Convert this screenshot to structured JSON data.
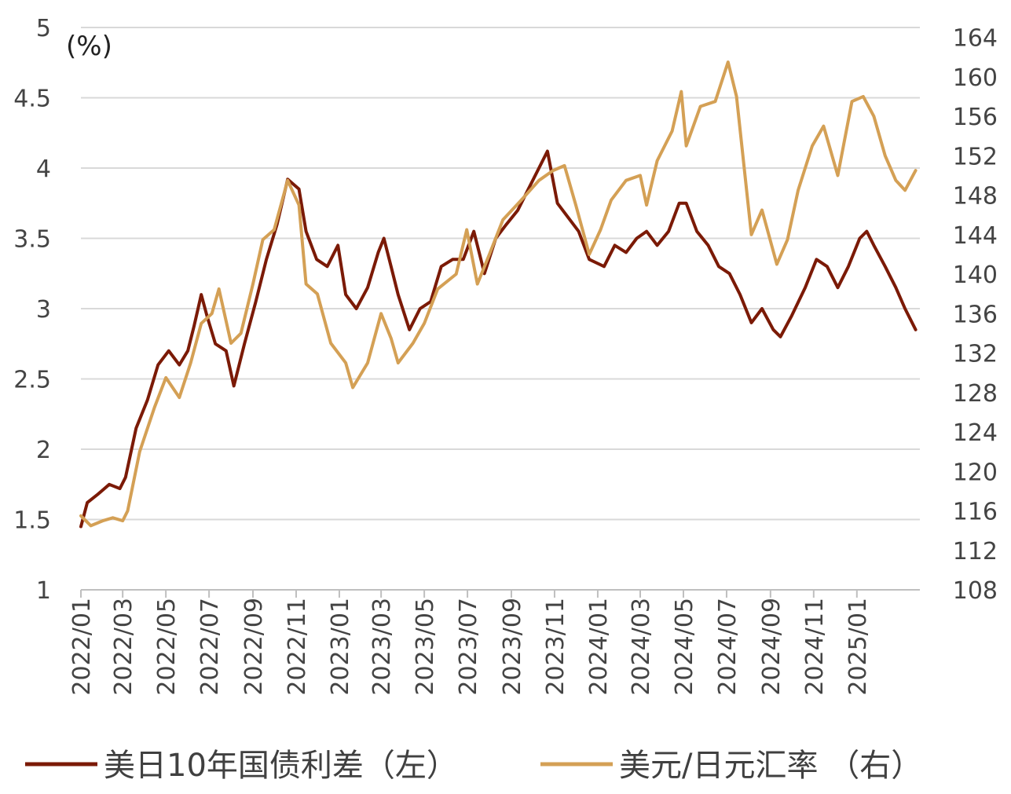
{
  "chart_data": {
    "type": "line",
    "unit_label": "(%)",
    "x_tick_labels": [
      "2022/01",
      "2022/03",
      "2022/05",
      "2022/07",
      "2022/09",
      "2022/11",
      "2023/01",
      "2023/03",
      "2023/05",
      "2023/07",
      "2023/09",
      "2023/11",
      "2024/01",
      "2024/03",
      "2024/05",
      "2024/07",
      "2024/09",
      "2024/11",
      "2025/01"
    ],
    "x_range": [
      "2022-01-01",
      "2025-03-31"
    ],
    "y_left": {
      "min": 1,
      "max": 5,
      "ticks": [
        "1",
        "1.5",
        "2",
        "2.5",
        "3",
        "3.5",
        "4",
        "4.5",
        "5"
      ]
    },
    "y_right": {
      "min": 108,
      "max": 165,
      "ticks": [
        "108",
        "112",
        "116",
        "120",
        "124",
        "128",
        "132",
        "136",
        "140",
        "144",
        "148",
        "152",
        "156",
        "160",
        "164"
      ]
    },
    "grid": true,
    "legend_position": "bottom",
    "series": [
      {
        "name": "美日10年国债利差（左）",
        "axis": "left",
        "color": "#7B1A06",
        "points": [
          [
            "2022-01-01",
            1.45
          ],
          [
            "2022-01-10",
            1.62
          ],
          [
            "2022-01-25",
            1.68
          ],
          [
            "2022-02-10",
            1.75
          ],
          [
            "2022-02-25",
            1.72
          ],
          [
            "2022-03-05",
            1.8
          ],
          [
            "2022-03-20",
            2.15
          ],
          [
            "2022-04-05",
            2.35
          ],
          [
            "2022-04-20",
            2.6
          ],
          [
            "2022-05-05",
            2.7
          ],
          [
            "2022-05-20",
            2.6
          ],
          [
            "2022-06-01",
            2.7
          ],
          [
            "2022-06-10",
            2.88
          ],
          [
            "2022-06-20",
            3.1
          ],
          [
            "2022-06-28",
            2.95
          ],
          [
            "2022-07-10",
            2.75
          ],
          [
            "2022-07-25",
            2.7
          ],
          [
            "2022-08-05",
            2.45
          ],
          [
            "2022-08-20",
            2.75
          ],
          [
            "2022-09-05",
            3.05
          ],
          [
            "2022-09-20",
            3.35
          ],
          [
            "2022-10-05",
            3.6
          ],
          [
            "2022-10-20",
            3.92
          ],
          [
            "2022-11-05",
            3.85
          ],
          [
            "2022-11-15",
            3.55
          ],
          [
            "2022-11-30",
            3.35
          ],
          [
            "2022-12-15",
            3.3
          ],
          [
            "2022-12-30",
            3.45
          ],
          [
            "2023-01-10",
            3.1
          ],
          [
            "2023-01-25",
            3.0
          ],
          [
            "2023-02-10",
            3.15
          ],
          [
            "2023-02-25",
            3.4
          ],
          [
            "2023-03-05",
            3.5
          ],
          [
            "2023-03-15",
            3.3
          ],
          [
            "2023-03-25",
            3.1
          ],
          [
            "2023-04-10",
            2.85
          ],
          [
            "2023-04-25",
            3.0
          ],
          [
            "2023-05-10",
            3.05
          ],
          [
            "2023-05-25",
            3.3
          ],
          [
            "2023-06-10",
            3.35
          ],
          [
            "2023-06-25",
            3.35
          ],
          [
            "2023-07-10",
            3.55
          ],
          [
            "2023-07-25",
            3.25
          ],
          [
            "2023-08-10",
            3.5
          ],
          [
            "2023-08-25",
            3.6
          ],
          [
            "2023-09-10",
            3.7
          ],
          [
            "2023-09-25",
            3.85
          ],
          [
            "2023-10-10",
            4.0
          ],
          [
            "2023-10-22",
            4.12
          ],
          [
            "2023-11-05",
            3.75
          ],
          [
            "2023-11-20",
            3.65
          ],
          [
            "2023-12-05",
            3.55
          ],
          [
            "2023-12-20",
            3.35
          ],
          [
            "2024-01-10",
            3.3
          ],
          [
            "2024-01-25",
            3.45
          ],
          [
            "2024-02-10",
            3.4
          ],
          [
            "2024-02-25",
            3.5
          ],
          [
            "2024-03-10",
            3.55
          ],
          [
            "2024-03-25",
            3.45
          ],
          [
            "2024-04-10",
            3.55
          ],
          [
            "2024-04-25",
            3.75
          ],
          [
            "2024-05-05",
            3.75
          ],
          [
            "2024-05-20",
            3.55
          ],
          [
            "2024-06-05",
            3.45
          ],
          [
            "2024-06-20",
            3.3
          ],
          [
            "2024-07-05",
            3.25
          ],
          [
            "2024-07-20",
            3.1
          ],
          [
            "2024-08-05",
            2.9
          ],
          [
            "2024-08-20",
            3.0
          ],
          [
            "2024-09-05",
            2.85
          ],
          [
            "2024-09-15",
            2.8
          ],
          [
            "2024-10-01",
            2.95
          ],
          [
            "2024-10-20",
            3.15
          ],
          [
            "2024-11-05",
            3.35
          ],
          [
            "2024-11-20",
            3.3
          ],
          [
            "2024-12-05",
            3.15
          ],
          [
            "2024-12-20",
            3.3
          ],
          [
            "2025-01-05",
            3.5
          ],
          [
            "2025-01-15",
            3.55
          ],
          [
            "2025-01-25",
            3.45
          ],
          [
            "2025-02-10",
            3.3
          ],
          [
            "2025-02-25",
            3.15
          ],
          [
            "2025-03-10",
            3.0
          ],
          [
            "2025-03-25",
            2.85
          ]
        ]
      },
      {
        "name": "美元/日元汇率 （右）",
        "axis": "right",
        "color": "#D4A055",
        "points": [
          [
            "2022-01-01",
            115.5
          ],
          [
            "2022-01-15",
            114.5
          ],
          [
            "2022-02-01",
            115
          ],
          [
            "2022-02-15",
            115.3
          ],
          [
            "2022-03-01",
            115
          ],
          [
            "2022-03-08",
            116
          ],
          [
            "2022-03-25",
            122
          ],
          [
            "2022-04-15",
            126.5
          ],
          [
            "2022-05-01",
            129.5
          ],
          [
            "2022-05-20",
            127.5
          ],
          [
            "2022-06-05",
            131
          ],
          [
            "2022-06-20",
            135
          ],
          [
            "2022-07-05",
            136
          ],
          [
            "2022-07-15",
            138.5
          ],
          [
            "2022-08-01",
            133
          ],
          [
            "2022-08-15",
            134
          ],
          [
            "2022-09-01",
            139
          ],
          [
            "2022-09-15",
            143.5
          ],
          [
            "2022-10-01",
            144.5
          ],
          [
            "2022-10-20",
            149.5
          ],
          [
            "2022-11-05",
            147
          ],
          [
            "2022-11-15",
            139
          ],
          [
            "2022-12-01",
            138
          ],
          [
            "2022-12-20",
            133
          ],
          [
            "2023-01-10",
            131
          ],
          [
            "2023-01-20",
            128.5
          ],
          [
            "2023-02-10",
            131
          ],
          [
            "2023-03-01",
            136
          ],
          [
            "2023-03-15",
            133.5
          ],
          [
            "2023-03-25",
            131
          ],
          [
            "2023-04-15",
            133
          ],
          [
            "2023-05-01",
            135
          ],
          [
            "2023-05-20",
            138.5
          ],
          [
            "2023-06-15",
            140
          ],
          [
            "2023-06-30",
            144.5
          ],
          [
            "2023-07-15",
            139
          ],
          [
            "2023-08-01",
            142
          ],
          [
            "2023-08-20",
            145.5
          ],
          [
            "2023-09-15",
            147.5
          ],
          [
            "2023-10-10",
            149.5
          ],
          [
            "2023-10-30",
            150.5
          ],
          [
            "2023-11-15",
            151
          ],
          [
            "2023-12-01",
            147
          ],
          [
            "2023-12-20",
            142
          ],
          [
            "2024-01-05",
            144.5
          ],
          [
            "2024-01-20",
            147.5
          ],
          [
            "2024-02-10",
            149.5
          ],
          [
            "2024-03-01",
            150
          ],
          [
            "2024-03-10",
            147
          ],
          [
            "2024-03-25",
            151.5
          ],
          [
            "2024-04-15",
            154.5
          ],
          [
            "2024-04-28",
            158.5
          ],
          [
            "2024-05-05",
            153
          ],
          [
            "2024-05-25",
            157
          ],
          [
            "2024-06-15",
            157.5
          ],
          [
            "2024-07-03",
            161.5
          ],
          [
            "2024-07-15",
            158
          ],
          [
            "2024-08-05",
            144
          ],
          [
            "2024-08-20",
            146.5
          ],
          [
            "2024-09-10",
            141
          ],
          [
            "2024-09-25",
            143.5
          ],
          [
            "2024-10-10",
            148.5
          ],
          [
            "2024-10-30",
            153
          ],
          [
            "2024-11-15",
            155
          ],
          [
            "2024-12-05",
            150
          ],
          [
            "2024-12-25",
            157.5
          ],
          [
            "2025-01-10",
            158
          ],
          [
            "2025-01-25",
            156
          ],
          [
            "2025-02-10",
            152
          ],
          [
            "2025-02-25",
            149.5
          ],
          [
            "2025-03-10",
            148.5
          ],
          [
            "2025-03-25",
            150.5
          ]
        ]
      }
    ]
  }
}
